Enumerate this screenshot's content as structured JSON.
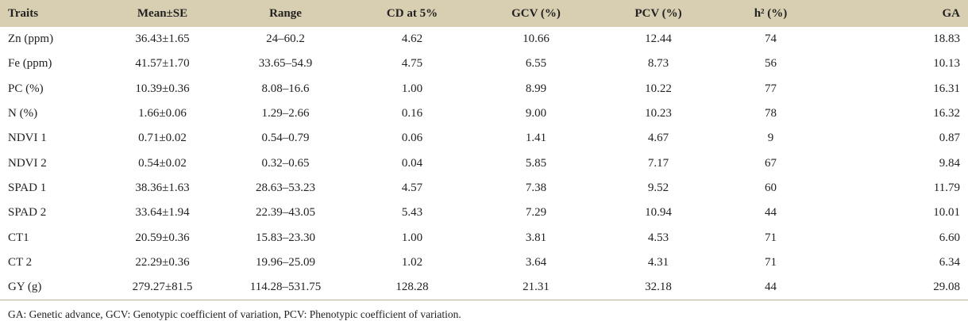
{
  "table": {
    "headers": [
      "Traits",
      "Mean±SE",
      "Range",
      "CD at 5%",
      "GCV (%)",
      "PCV (%)",
      "h² (%)",
      "GA"
    ],
    "rows": [
      [
        "Zn (ppm)",
        "36.43±1.65",
        "24–60.2",
        "4.62",
        "10.66",
        "12.44",
        "74",
        "18.83"
      ],
      [
        "Fe (ppm)",
        "41.57±1.70",
        "33.65–54.9",
        "4.75",
        "6.55",
        "8.73",
        "56",
        "10.13"
      ],
      [
        "PC (%)",
        "10.39±0.36",
        "8.08–16.6",
        "1.00",
        "8.99",
        "10.22",
        "77",
        "16.31"
      ],
      [
        "N (%)",
        "1.66±0.06",
        "1.29–2.66",
        "0.16",
        "9.00",
        "10.23",
        "78",
        "16.32"
      ],
      [
        "NDVI 1",
        "0.71±0.02",
        "0.54–0.79",
        "0.06",
        "1.41",
        "4.67",
        "9",
        "0.87"
      ],
      [
        "NDVI 2",
        "0.54±0.02",
        "0.32–0.65",
        "0.04",
        "5.85",
        "7.17",
        "67",
        "9.84"
      ],
      [
        "SPAD 1",
        "38.36±1.63",
        "28.63–53.23",
        "4.57",
        "7.38",
        "9.52",
        "60",
        "11.79"
      ],
      [
        "SPAD 2",
        "33.64±1.94",
        "22.39–43.05",
        "5.43",
        "7.29",
        "10.94",
        "44",
        "10.01"
      ],
      [
        "CT1",
        "20.59±0.36",
        "15.83–23.30",
        "1.00",
        "3.81",
        "4.53",
        "71",
        "6.60"
      ],
      [
        "CT 2",
        "22.29±0.36",
        "19.96–25.09",
        "1.02",
        "3.64",
        "4.31",
        "71",
        "6.34"
      ],
      [
        "GY (g)",
        "279.27±81.5",
        "114.28–531.75",
        "128.28",
        "21.31",
        "32.18",
        "44",
        "29.08"
      ]
    ]
  },
  "footnote": "GA: Genetic advance, GCV: Genotypic coefficient of variation, PCV: Phenotypic coefficient of variation.",
  "colors": {
    "header_background": "#d8ceb1",
    "text": "#222222"
  }
}
